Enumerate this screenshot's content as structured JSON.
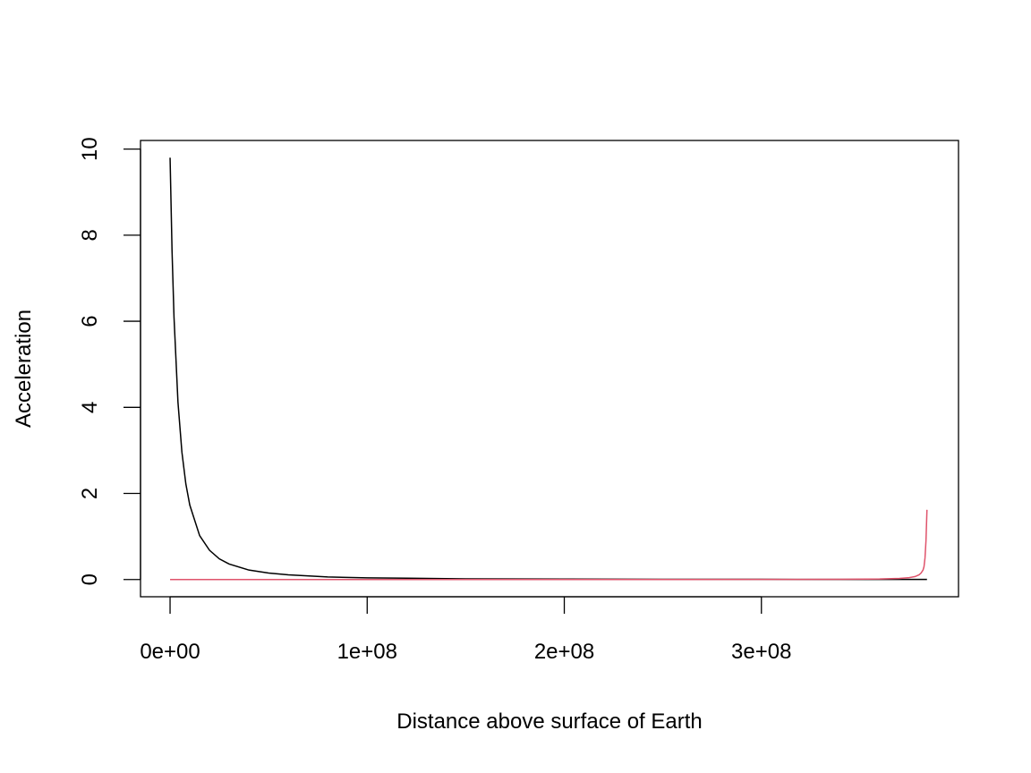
{
  "chart_data": {
    "type": "line",
    "title": "",
    "xlabel": "Distance above surface of Earth",
    "ylabel": "Acceleration",
    "xlim": [
      -15000000,
      400000000
    ],
    "ylim": [
      -0.4,
      10.2
    ],
    "grid": false,
    "legend": "none",
    "x_ticks": [
      0,
      100000000,
      200000000,
      300000000
    ],
    "x_tick_labels": [
      "0e+00",
      "1e+08",
      "2e+08",
      "3e+08"
    ],
    "y_ticks": [
      0,
      2,
      4,
      6,
      8,
      10
    ],
    "y_tick_labels": [
      "0",
      "2",
      "4",
      "6",
      "8",
      "10"
    ],
    "series": [
      {
        "color": "#000000",
        "x": [
          0,
          1000000,
          2000000,
          4000000,
          6000000,
          8000000,
          10000000,
          15000000,
          20000000,
          25000000,
          30000000,
          40000000,
          50000000,
          60000000,
          80000000,
          100000000,
          120000000,
          150000000,
          200000000,
          250000000,
          300000000,
          350000000,
          384000000
        ],
        "y": [
          9.8,
          7.63,
          6.09,
          4.12,
          2.96,
          2.22,
          1.73,
          1.02,
          0.68,
          0.48,
          0.36,
          0.22,
          0.15,
          0.11,
          0.06,
          0.04,
          0.03,
          0.017,
          0.01,
          0.006,
          0.004,
          0.003,
          0.003
        ]
      },
      {
        "color": "#DF536B",
        "x": [
          0,
          100000000,
          200000000,
          300000000,
          340000000,
          360000000,
          370000000,
          375000000,
          378000000,
          380000000,
          381000000,
          382000000,
          382500000,
          383000000,
          383500000,
          384000000
        ],
        "y": [
          0,
          0.0001,
          0.0003,
          0.002,
          0.005,
          0.012,
          0.026,
          0.045,
          0.07,
          0.11,
          0.15,
          0.22,
          0.3,
          0.5,
          0.9,
          1.62
        ]
      }
    ]
  }
}
